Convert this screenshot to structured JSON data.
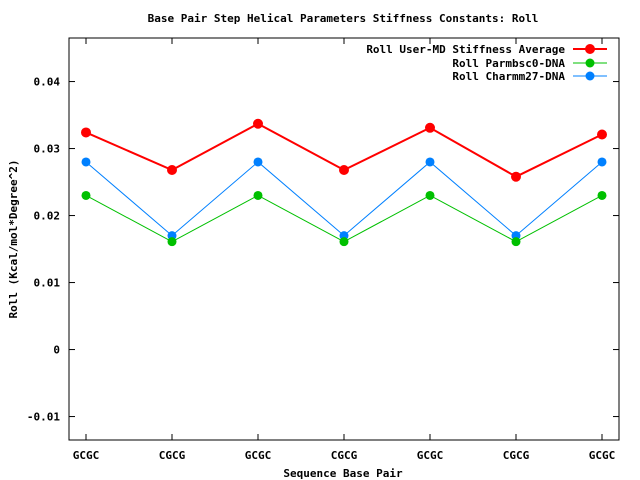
{
  "chart_data": {
    "type": "line",
    "title": "Base Pair Step Helical Parameters Stiffness Constants: Roll",
    "xlabel": "Sequence Base Pair",
    "ylabel": "Roll (Kcal/mol*Degree^2)",
    "categories": [
      "GCGC",
      "CGCG",
      "GCGC",
      "CGCG",
      "GCGC",
      "CGCG",
      "GCGC"
    ],
    "ylim": [
      -0.0135,
      0.0465
    ],
    "yticks": [
      -0.01,
      0,
      0.01,
      0.02,
      0.03,
      0.04
    ],
    "ytick_labels": [
      "-0.01",
      "0",
      "0.01",
      "0.02",
      "0.03",
      "0.04"
    ],
    "grid": false,
    "legend_position": "top-right",
    "series": [
      {
        "name": "Roll User-MD Stiffness Average",
        "color": "#ff0000",
        "values": [
          0.0324,
          0.0268,
          0.0337,
          0.0268,
          0.0331,
          0.0258,
          0.0321
        ]
      },
      {
        "name": "Roll Parmbsc0-DNA",
        "color": "#00c000",
        "values": [
          0.023,
          0.0161,
          0.023,
          0.0161,
          0.023,
          0.0161,
          0.023
        ]
      },
      {
        "name": "Roll Charmm27-DNA",
        "color": "#0080ff",
        "values": [
          0.028,
          0.017,
          0.028,
          0.017,
          0.028,
          0.017,
          0.028
        ]
      }
    ]
  }
}
